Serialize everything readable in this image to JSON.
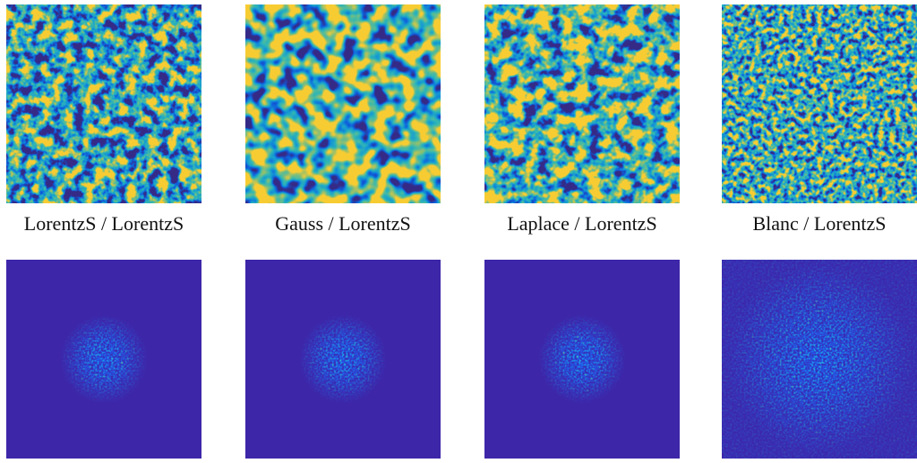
{
  "panels": [
    {
      "label": "LorentzS / LorentzS"
    },
    {
      "label": "Gauss / LorentzS"
    },
    {
      "label": "Laplace / LorentzS"
    },
    {
      "label": "Blanc / LorentzS"
    }
  ]
}
